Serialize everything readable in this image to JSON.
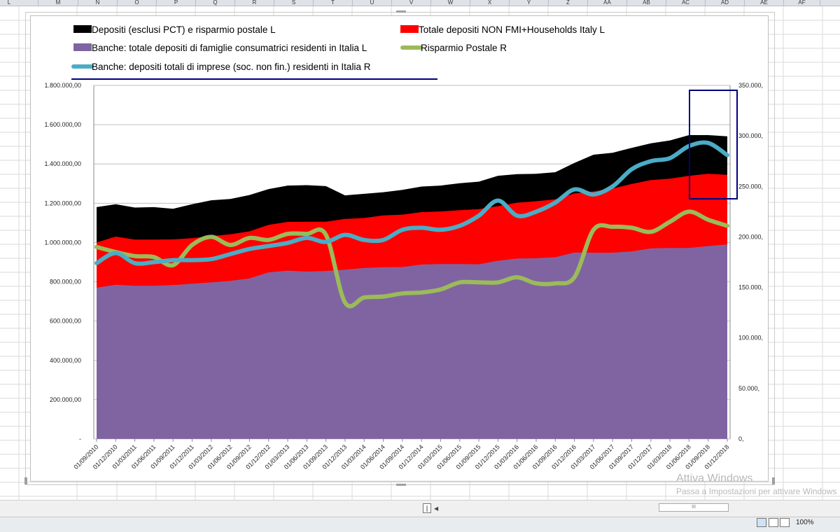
{
  "spreadsheet": {
    "columns": [
      "L",
      "M",
      "N",
      "O",
      "P",
      "Q",
      "R",
      "S",
      "T",
      "U",
      "V",
      "W",
      "X",
      "Y",
      "Z",
      "AA",
      "AB",
      "AC",
      "AD",
      "AE",
      "AF"
    ],
    "watermark_title": "Attiva Windows",
    "watermark_sub": "Passa a Impostazioni per attivare Windows",
    "zoom": "100%",
    "hscroll_label": "III"
  },
  "colors": {
    "black_area": "#000000",
    "red_area": "#ff0000",
    "purple_area": "#8064a2",
    "green_line": "#9bbb59",
    "blue_line": "#4bacc6",
    "annotation": "#000080"
  },
  "chart_data": {
    "type": "area",
    "dates": [
      "01/09/2010",
      "01/12/2010",
      "01/03/2011",
      "01/06/2011",
      "01/09/2011",
      "01/12/2011",
      "01/03/2012",
      "01/06/2012",
      "01/09/2012",
      "01/12/2012",
      "01/03/2013",
      "01/06/2013",
      "01/09/2013",
      "01/12/2013",
      "01/03/2014",
      "01/06/2014",
      "01/09/2014",
      "01/12/2014",
      "01/03/2015",
      "01/06/2015",
      "01/09/2015",
      "01/12/2015",
      "01/03/2016",
      "01/06/2016",
      "01/09/2016",
      "01/12/2016",
      "01/03/2017",
      "01/06/2017",
      "01/09/2017",
      "01/12/2017",
      "01/03/2018",
      "01/06/2018",
      "01/09/2018",
      "01/12/2018"
    ],
    "left_axis": {
      "range": [
        0,
        1800000
      ],
      "tick_labels": [
        "-",
        "200.000,00",
        "400.000,00",
        "600.000,00",
        "800.000,00",
        "1.000.000,00",
        "1.200.000,00",
        "1.400.000,00",
        "1.600.000,00",
        "1.800.000,00"
      ]
    },
    "right_axis": {
      "range": [
        0,
        350000
      ],
      "tick_labels": [
        "0,",
        "50.000,",
        "100.000,",
        "150.000,",
        "200.000,",
        "250.000,",
        "300.000,",
        "350.000,"
      ]
    },
    "series": [
      {
        "name": "Depositi (esclusi PCT) e risparmio postale L",
        "axis": "left",
        "kind": "area",
        "color": "#000000",
        "values": [
          1180000,
          1195000,
          1178000,
          1180000,
          1172000,
          1195000,
          1215000,
          1222000,
          1242000,
          1272000,
          1290000,
          1292000,
          1287000,
          1240000,
          1248000,
          1256000,
          1268000,
          1285000,
          1290000,
          1302000,
          1310000,
          1340000,
          1348000,
          1350000,
          1358000,
          1405000,
          1447000,
          1457000,
          1482000,
          1505000,
          1520000,
          1547000,
          1547000,
          1541000
        ]
      },
      {
        "name": "Totale depositi NON FMI+Households Italy L",
        "axis": "left",
        "kind": "area",
        "color": "#ff0000",
        "values": [
          1000000,
          1030000,
          1015000,
          1015000,
          1016000,
          1022000,
          1033000,
          1042000,
          1057000,
          1090000,
          1105000,
          1106000,
          1106000,
          1120000,
          1125000,
          1138000,
          1142000,
          1155000,
          1158000,
          1165000,
          1170000,
          1185000,
          1203000,
          1210000,
          1220000,
          1250000,
          1260000,
          1275000,
          1298000,
          1318000,
          1325000,
          1340000,
          1350000,
          1345000
        ]
      },
      {
        "name": "Banche:  totale depositi di famiglie consumatrici residenti in Italia L",
        "axis": "left",
        "kind": "area",
        "color": "#8064a2",
        "values": [
          770000,
          785000,
          780000,
          780000,
          783000,
          790000,
          797000,
          805000,
          817000,
          848000,
          857000,
          852000,
          855000,
          862000,
          870000,
          874000,
          875000,
          888000,
          890000,
          890000,
          889000,
          907000,
          918000,
          920000,
          925000,
          949000,
          948000,
          948000,
          955000,
          970000,
          972000,
          972000,
          982000,
          990000
        ]
      },
      {
        "name": "Risparmio Postale R",
        "axis": "right",
        "kind": "line",
        "color": "#9bbb59",
        "values": [
          190000,
          185000,
          181000,
          180000,
          172000,
          192000,
          200000,
          192000,
          199000,
          197000,
          203000,
          203000,
          202000,
          135000,
          140000,
          141000,
          144000,
          145000,
          148000,
          155000,
          155000,
          155000,
          160000,
          154000,
          154000,
          160000,
          207000,
          210000,
          209000,
          205000,
          215000,
          225000,
          217000,
          211000
        ]
      },
      {
        "name": "Banche: depositi totali di imprese (soc. non fin.) residenti in Italia R",
        "axis": "right",
        "kind": "line",
        "color": "#4bacc6",
        "values": [
          174000,
          184000,
          174000,
          175000,
          177000,
          177000,
          178000,
          183000,
          188000,
          191000,
          194000,
          199000,
          195000,
          202000,
          197000,
          197000,
          207000,
          209000,
          207000,
          211000,
          221000,
          236000,
          221000,
          225000,
          234000,
          247000,
          242000,
          250000,
          267000,
          275000,
          278000,
          290000,
          293000,
          281000
        ]
      }
    ]
  }
}
